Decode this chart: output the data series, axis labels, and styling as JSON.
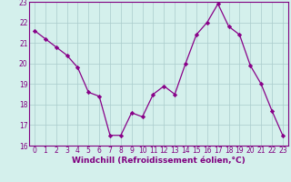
{
  "x": [
    0,
    1,
    2,
    3,
    4,
    5,
    6,
    7,
    8,
    9,
    10,
    11,
    12,
    13,
    14,
    15,
    16,
    17,
    18,
    19,
    20,
    21,
    22,
    23
  ],
  "y": [
    21.6,
    21.2,
    20.8,
    20.4,
    19.8,
    18.6,
    18.4,
    16.5,
    16.5,
    17.6,
    17.4,
    18.5,
    18.9,
    18.5,
    20.0,
    21.4,
    22.0,
    22.9,
    21.8,
    21.4,
    19.9,
    19.0,
    17.7,
    16.5
  ],
  "line_color": "#880088",
  "marker": "D",
  "marker_size": 2.2,
  "bg_color": "#d4f0ec",
  "grid_color": "#aacccc",
  "xlabel": "Windchill (Refroidissement éolien,°C)",
  "xlim_min": -0.5,
  "xlim_max": 23.5,
  "ylim_min": 16,
  "ylim_max": 23,
  "xticks": [
    0,
    1,
    2,
    3,
    4,
    5,
    6,
    7,
    8,
    9,
    10,
    11,
    12,
    13,
    14,
    15,
    16,
    17,
    18,
    19,
    20,
    21,
    22,
    23
  ],
  "yticks": [
    16,
    17,
    18,
    19,
    20,
    21,
    22,
    23
  ],
  "tick_fontsize": 5.5,
  "xlabel_fontsize": 6.5,
  "spine_color": "#800080",
  "label_color": "#800080"
}
